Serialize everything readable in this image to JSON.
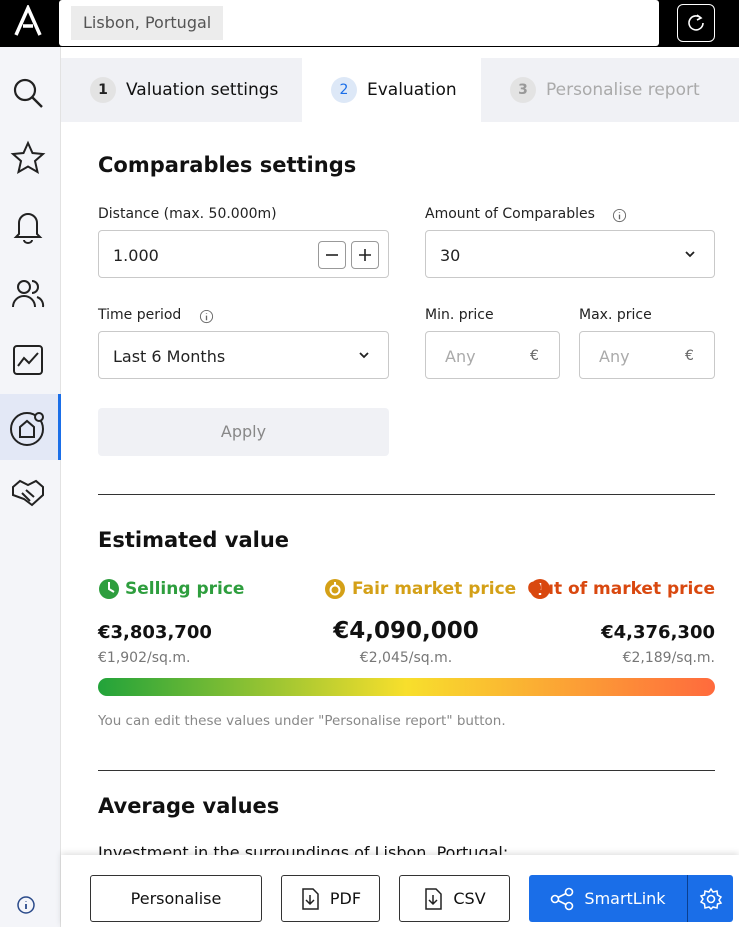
{
  "header": {
    "location": "Lisbon, Portugal"
  },
  "tabs": [
    {
      "number": "1",
      "label": "Valuation settings"
    },
    {
      "number": "2",
      "label": "Evaluation"
    },
    {
      "number": "3",
      "label": "Personalise report"
    }
  ],
  "comparables": {
    "title": "Comparables settings",
    "distance": {
      "label": "Distance (max. 50.000m)",
      "value": "1.000"
    },
    "amount": {
      "label": "Amount of Comparables",
      "value": "30"
    },
    "time_period": {
      "label": "Time period",
      "value": "Last 6 Months"
    },
    "min_price": {
      "label": "Min. price",
      "placeholder": "Any",
      "unit": "€"
    },
    "max_price": {
      "label": "Max. price",
      "placeholder": "Any",
      "unit": "€"
    },
    "apply": "Apply"
  },
  "estimated": {
    "title": "Estimated value",
    "columns": [
      {
        "label": "Selling price",
        "price": "€3,803,700",
        "per_sqm": "€1,902/sq.m."
      },
      {
        "label": "Fair market price",
        "price": "€4,090,000",
        "per_sqm": "€2,045/sq.m."
      },
      {
        "label": "Out of market price",
        "price": "€4,376,300",
        "per_sqm": "€2,189/sq.m."
      }
    ],
    "note": "You can edit these values under \"Personalise report\" button."
  },
  "average": {
    "title": "Average values",
    "text": "Investment in the surroundings of Lisbon, Portugal:"
  },
  "footer": {
    "personalise": "Personalise",
    "pdf": "PDF",
    "csv": "CSV",
    "smartlink": "SmartLink"
  }
}
